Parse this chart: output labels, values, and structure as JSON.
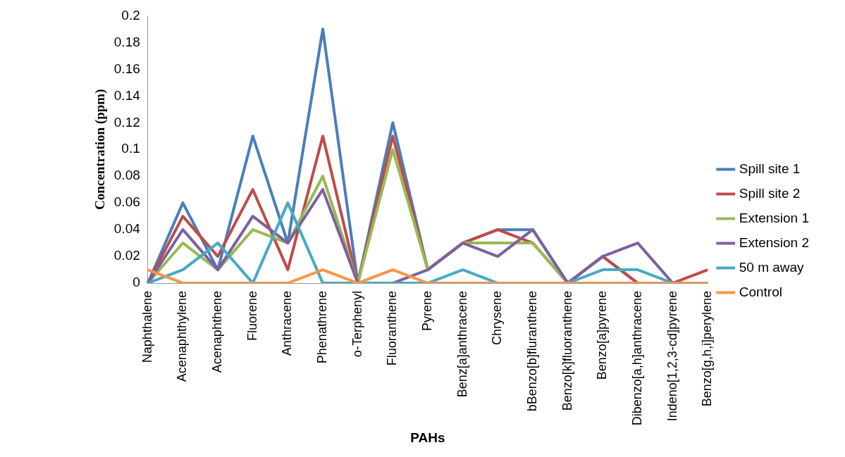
{
  "chart_data": {
    "type": "line",
    "xlabel": "PAHs",
    "ylabel": "Concentration (ppm)",
    "categories": [
      "Naphthalene",
      "Acenaphthylene",
      "Acenaphthene",
      "Fluorene",
      "Anthracene",
      "Phenathrene",
      "o-Terphenyl",
      "Fluoranthene",
      "Pyrene",
      "Benz[a]anthracene",
      "Chrysene",
      "bBenzo[b]fluranthene",
      "Benzo[k]fluoranthene",
      "Benzo[a]pyrene",
      "Dibenzo[a,h]anthracene",
      "Indeno[1,2,3-cd]pyrene",
      "Benzo[g,h,i]perylene"
    ],
    "series": [
      {
        "name": "Spill site 1",
        "color": "#4a7ebb",
        "values": [
          0,
          0.06,
          0.01,
          0.11,
          0.03,
          0.19,
          0,
          0.12,
          0.01,
          0.03,
          0.04,
          0.04,
          0,
          0.02,
          0,
          0,
          0
        ]
      },
      {
        "name": "Spill site 2",
        "color": "#be4b48",
        "values": [
          0,
          0.05,
          0.02,
          0.07,
          0.01,
          0.11,
          0,
          0.11,
          0.01,
          0.03,
          0.04,
          0.03,
          0,
          0.02,
          0,
          0,
          0.01
        ]
      },
      {
        "name": "Extension 1",
        "color": "#98b954",
        "values": [
          0,
          0.03,
          0.01,
          0.04,
          0.03,
          0.08,
          0,
          0.1,
          0.01,
          0.03,
          0.03,
          0.03,
          0,
          0,
          null,
          null,
          null
        ]
      },
      {
        "name": "Extension 2",
        "color": "#7d60a0",
        "values": [
          0,
          0.04,
          0.01,
          0.05,
          0.03,
          0.07,
          0,
          0,
          0.01,
          0.03,
          0.02,
          0.04,
          0,
          0.02,
          0.03,
          0,
          0
        ]
      },
      {
        "name": "50 m away",
        "color": "#46aac5",
        "values": [
          0,
          0.01,
          0.03,
          0,
          0.06,
          0,
          0,
          0,
          0,
          0.01,
          0,
          0,
          0,
          0.01,
          0.01,
          0,
          0
        ]
      },
      {
        "name": "Control",
        "color": "#f79646",
        "values": [
          0.01,
          0,
          0,
          0,
          0,
          0.01,
          0,
          0.01,
          0,
          0,
          0,
          0,
          0,
          0,
          0,
          0,
          0
        ]
      }
    ],
    "ylim": [
      0,
      0.2
    ],
    "yticks": [
      0,
      0.02,
      0.04,
      0.06,
      0.08,
      0.1,
      0.12,
      0.14,
      0.16,
      0.18,
      0.2
    ],
    "grid": false,
    "legend": "right",
    "marker": "none",
    "line_style": "solid"
  }
}
